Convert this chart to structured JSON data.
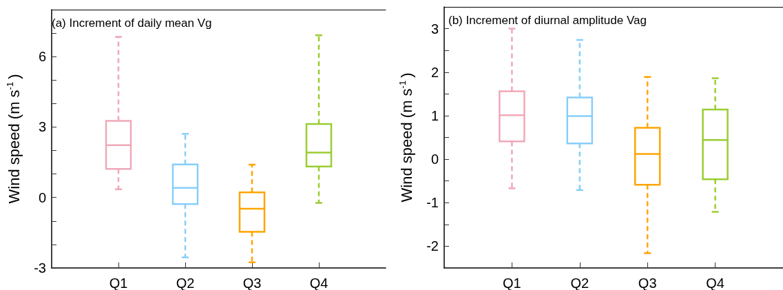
{
  "chart_data": [
    {
      "type": "box",
      "title": "(a) Increment of daily mean Vg",
      "ylabel": "Wind speed (m s$^{-1}$)",
      "categories": [
        "Q1",
        "Q2",
        "Q3",
        "Q4"
      ],
      "colors": [
        "#f0a8b8",
        "#87cefa",
        "#ffa500",
        "#9acd32"
      ],
      "line_style": "dashed",
      "grid": false,
      "boxes": [
        {
          "low": 0.35,
          "q1": 1.22,
          "median": 2.23,
          "q3": 3.26,
          "high": 6.84
        },
        {
          "low": -2.55,
          "q1": -0.28,
          "median": 0.41,
          "q3": 1.41,
          "high": 2.71
        },
        {
          "low": -2.76,
          "q1": -1.46,
          "median": -0.48,
          "q3": 0.22,
          "high": 1.4
        },
        {
          "low": -0.23,
          "q1": 1.32,
          "median": 1.91,
          "q3": 3.13,
          "high": 6.91
        }
      ],
      "ylim": [
        -3,
        8
      ],
      "yticks": [
        -3,
        {
          "value": -2,
          "label": null
        },
        {
          "value": -1,
          "label": null
        },
        0,
        {
          "value": 1,
          "label": null
        },
        {
          "value": 2,
          "label": null
        },
        3,
        {
          "value": 4,
          "label": null
        },
        {
          "value": 5,
          "label": null
        },
        6,
        {
          "value": 7,
          "label": null
        }
      ]
    },
    {
      "type": "box",
      "title": "(b) Increment of diurnal amplitude Vag",
      "ylabel": "Wind speed (m s$^{-1}$)",
      "categories": [
        "Q1",
        "Q2",
        "Q3",
        "Q4"
      ],
      "colors": [
        "#f0a8b8",
        "#87cefa",
        "#ffa500",
        "#9acd32"
      ],
      "line_style": "dashed",
      "grid": false,
      "boxes": [
        {
          "low": -0.67,
          "q1": 0.41,
          "median": 1.01,
          "q3": 1.56,
          "high": 3.0
        },
        {
          "low": -0.71,
          "q1": 0.36,
          "median": 0.99,
          "q3": 1.42,
          "high": 2.74
        },
        {
          "low": -2.16,
          "q1": -0.59,
          "median": 0.12,
          "q3": 0.72,
          "high": 1.89
        },
        {
          "low": -1.21,
          "q1": -0.46,
          "median": 0.44,
          "q3": 1.14,
          "high": 1.86
        }
      ],
      "ylim": [
        -2.5,
        3.5
      ],
      "yticks": [
        -2,
        {
          "value": -1.5,
          "label": null
        },
        -1,
        {
          "value": -0.5,
          "label": null
        },
        0,
        {
          "value": 0.5,
          "label": null
        },
        1,
        {
          "value": 1.5,
          "label": null
        },
        2,
        {
          "value": 2.5,
          "label": null
        },
        3
      ]
    }
  ]
}
